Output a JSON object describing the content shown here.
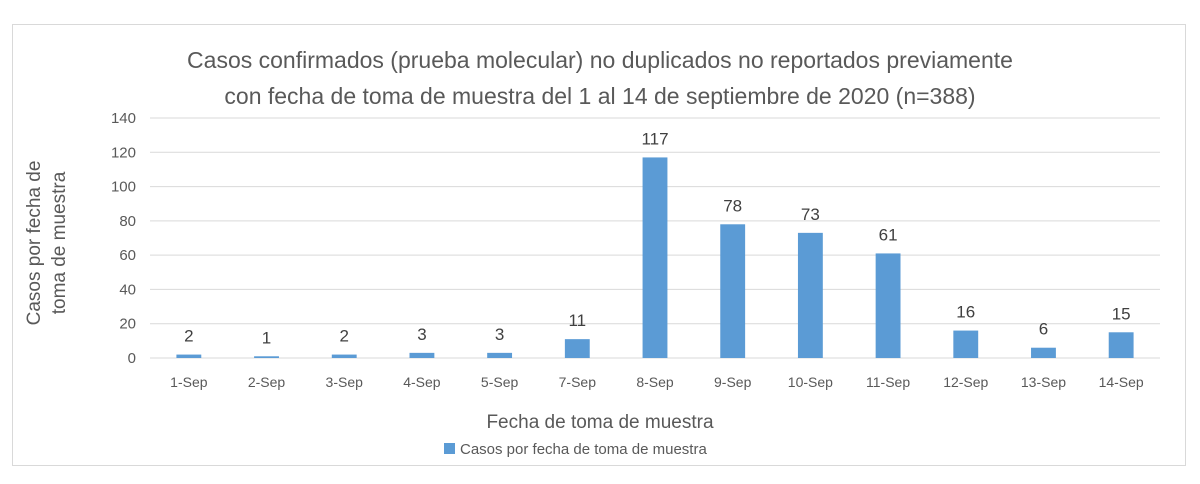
{
  "chart_data": {
    "type": "bar",
    "title": "Casos confirmados (prueba molecular) no duplicados no reportados previamente",
    "subtitle": "con fecha de toma de muestra del 1 al 14 de septiembre de 2020 (n=388)",
    "xlabel": "Fecha de toma de muestra",
    "ylabel_line1": "Casos por fecha de",
    "ylabel_line2": "toma de muestra",
    "ylim": [
      0,
      140
    ],
    "yticks": [
      "0",
      "20",
      "40",
      "60",
      "80",
      "100",
      "120",
      "140"
    ],
    "grid": true,
    "legend_position": "bottom",
    "categories": [
      "1-Sep",
      "2-Sep",
      "3-Sep",
      "4-Sep",
      "5-Sep",
      "7-Sep",
      "8-Sep",
      "9-Sep",
      "10-Sep",
      "11-Sep",
      "12-Sep",
      "13-Sep",
      "14-Sep"
    ],
    "series": [
      {
        "name": "Casos por fecha de toma de muestra",
        "color": "#5b9bd5",
        "values": [
          2,
          1,
          2,
          3,
          3,
          11,
          117,
          78,
          73,
          61,
          16,
          6,
          15
        ]
      }
    ]
  }
}
